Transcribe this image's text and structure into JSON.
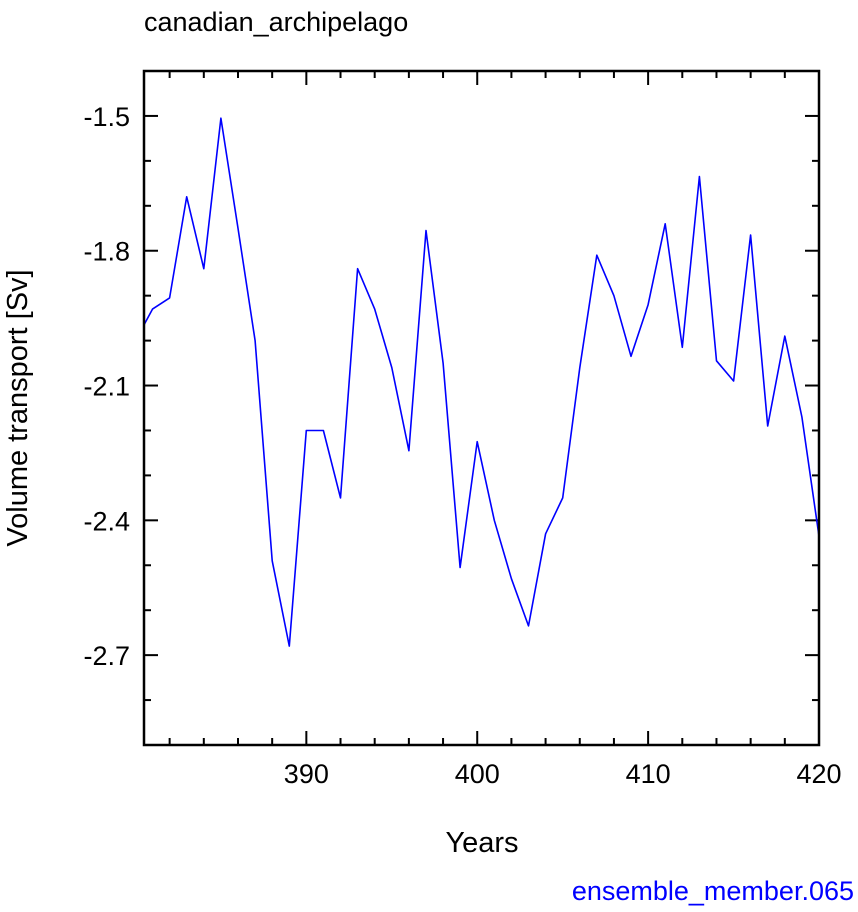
{
  "chart_data": {
    "type": "line",
    "title": "canadian_archipelago",
    "xlabel": "Years",
    "ylabel": "Volume transport [Sv]",
    "xlim": [
      380.5,
      420
    ],
    "ylim": [
      -2.9,
      -1.4
    ],
    "xticks": [
      390,
      400,
      410,
      420
    ],
    "yticks": [
      -1.5,
      -1.8,
      -2.1,
      -2.4,
      -2.7
    ],
    "ytick_labels": [
      "-1.5",
      "-1.8",
      "-2.1",
      "-2.4",
      "-2.7"
    ],
    "grid": false,
    "series": [
      {
        "color": "#0000ff",
        "x": [
          380.5,
          381,
          382,
          383,
          384,
          385,
          386,
          387,
          388,
          389,
          390,
          391,
          392,
          393,
          394,
          395,
          396,
          397,
          398,
          399,
          400,
          401,
          402,
          403,
          404,
          405,
          406,
          407,
          408,
          409,
          410,
          411,
          412,
          413,
          414,
          415,
          416,
          417,
          418,
          419,
          420
        ],
        "values": [
          -1.965,
          -1.93,
          -1.905,
          -1.68,
          -1.84,
          -1.505,
          -1.75,
          -2.0,
          -2.49,
          -2.68,
          -2.2,
          -2.2,
          -2.35,
          -1.84,
          -1.93,
          -2.06,
          -2.245,
          -1.755,
          -2.05,
          -2.505,
          -2.225,
          -2.4,
          -2.53,
          -2.635,
          -2.43,
          -2.35,
          -2.06,
          -1.81,
          -1.9,
          -2.035,
          -1.92,
          -1.74,
          -2.015,
          -1.635,
          -2.045,
          -2.09,
          -1.765,
          -2.19,
          -1.99,
          -2.17,
          -2.435
        ]
      }
    ],
    "annotation": {
      "text": "ensemble_member.065",
      "color": "#0000ff"
    }
  }
}
